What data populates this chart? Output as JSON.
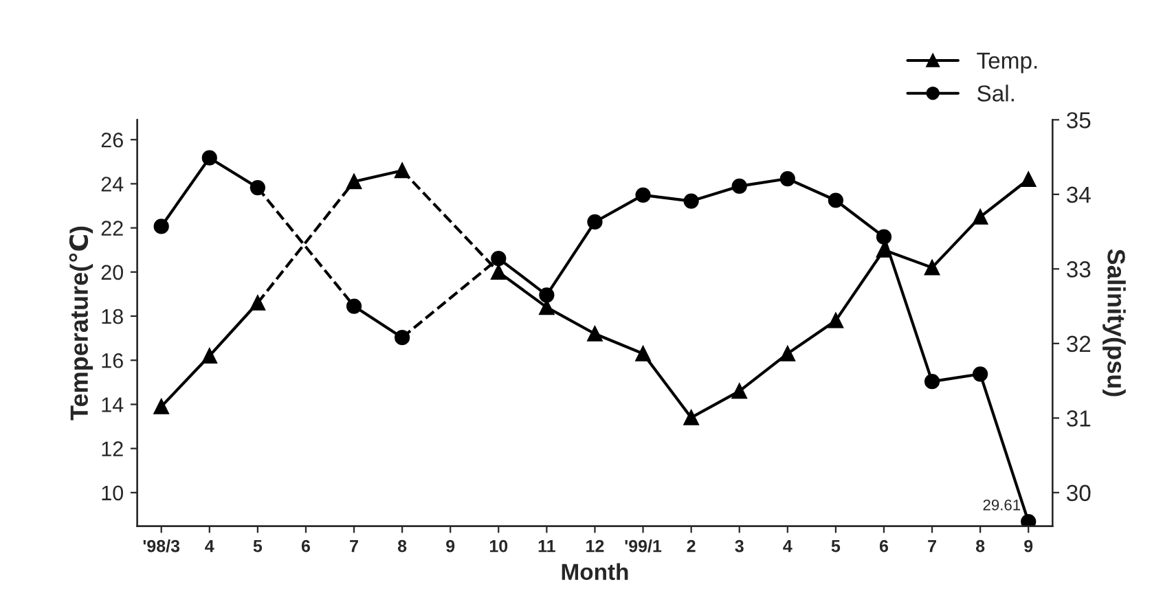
{
  "chart_data": {
    "type": "line",
    "xlabel": "Month",
    "ylabel": "Temperature(℃)",
    "y2label": "Salinity(psu)",
    "categories": [
      "'98/3",
      "4",
      "5",
      "6",
      "7",
      "8",
      "9",
      "10",
      "11",
      "12",
      "'99/1",
      "2",
      "3",
      "4",
      "5",
      "6",
      "7",
      "8",
      "9"
    ],
    "series": [
      {
        "name": "Temp.",
        "color": "#000000",
        "marker": "triangle",
        "values": [
          13.9,
          16.2,
          18.6,
          null,
          24.1,
          24.6,
          null,
          20.0,
          18.4,
          17.2,
          16.3,
          13.4,
          14.6,
          16.3,
          17.8,
          21.0,
          20.2,
          22.5,
          24.2
        ]
      },
      {
        "name": "Sal.",
        "color": "#000000",
        "marker": "circle",
        "axis": "y2",
        "values": [
          33.57,
          34.49,
          34.09,
          null,
          32.5,
          32.08,
          null,
          33.14,
          32.65,
          33.63,
          33.99,
          33.91,
          34.11,
          34.21,
          33.92,
          33.43,
          31.49,
          31.59,
          29.61
        ],
        "value_labels": [
          null,
          null,
          null,
          null,
          null,
          null,
          null,
          null,
          null,
          null,
          null,
          null,
          null,
          null,
          null,
          null,
          null,
          null,
          "29.61"
        ]
      }
    ],
    "ylim": [
      8.48,
      26.9
    ],
    "yticks": [
      10,
      12,
      14,
      16,
      18,
      20,
      22,
      24,
      26
    ],
    "y2lim": [
      29.55,
      35
    ],
    "y2ticks": [
      30,
      31,
      32,
      33,
      34,
      35
    ],
    "grid": false,
    "legend": "top right",
    "line_style": "solid"
  }
}
